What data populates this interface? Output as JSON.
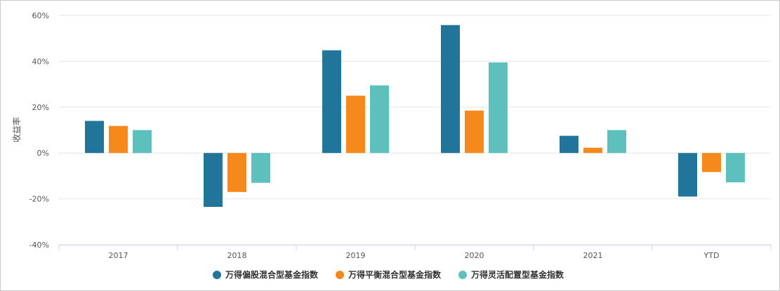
{
  "chart_data": {
    "type": "bar",
    "categories": [
      "2017",
      "2018",
      "2019",
      "2020",
      "2021",
      "YTD"
    ],
    "series": [
      {
        "name": "万得偏股混合型基金指数",
        "color": "#21759b",
        "values": [
          14.0,
          -23.5,
          44.8,
          55.8,
          7.5,
          -19.0
        ]
      },
      {
        "name": "万得平衡混合型基金指数",
        "color": "#f5891c",
        "values": [
          11.8,
          -17.0,
          25.0,
          18.5,
          2.3,
          -8.3
        ]
      },
      {
        "name": "万得灵活配置型基金指数",
        "color": "#5dc0bd",
        "values": [
          10.0,
          -13.0,
          29.5,
          39.5,
          10.0,
          -12.8
        ]
      }
    ],
    "ylim": [
      -40,
      60
    ],
    "yticks": [
      "-40%",
      "-20%",
      "0%",
      "20%",
      "40%",
      "60%"
    ],
    "ylabel": "收益率",
    "xlabel": "",
    "grid": true,
    "legend": "bottom-center"
  }
}
